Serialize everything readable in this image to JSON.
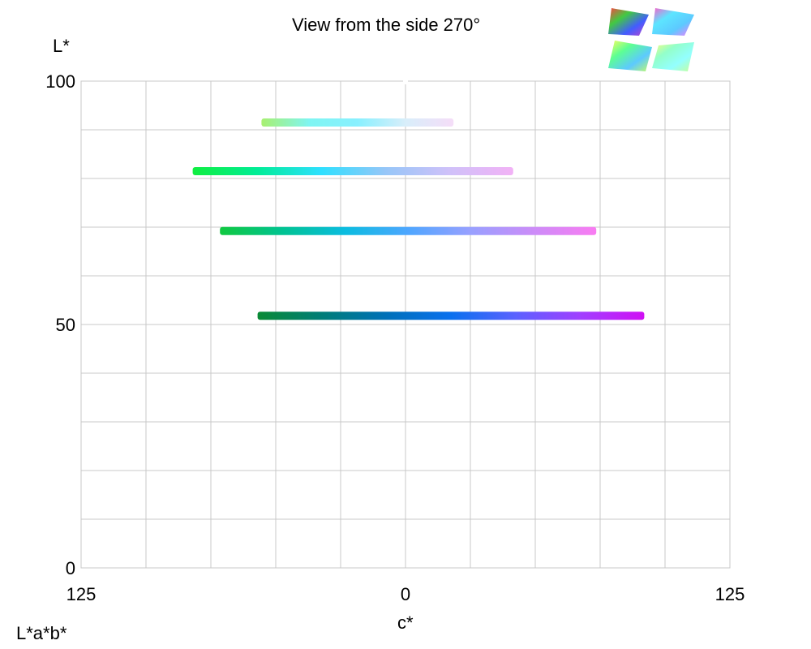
{
  "title": "View from the side 270°",
  "space_label": "L*a*b*",
  "chart_data": {
    "type": "line",
    "title": "View from the side 270°",
    "xlabel": "c*",
    "ylabel": "L*",
    "xlim": [
      -125,
      125
    ],
    "ylim": [
      0,
      100
    ],
    "x_tick_labels": [
      "125",
      "0",
      "125"
    ],
    "x_tick_values": [
      -125,
      0,
      125
    ],
    "y_tick_labels": [
      "0",
      "50",
      "100"
    ],
    "y_tick_values": [
      0,
      50,
      100
    ],
    "grid": true,
    "series": [
      {
        "L": 91.5,
        "c_from": -55.5,
        "c_to": 18.5,
        "colors": [
          "#a8f070",
          "#7ff5f2",
          "#88f0ff",
          "#d8eefa",
          "#f5ddf8"
        ]
      },
      {
        "L": 81.5,
        "c_from": -82,
        "c_to": 41.5,
        "colors": [
          "#10ee40",
          "#00ed96",
          "#2ee0ff",
          "#96c6f8",
          "#cfc1f9",
          "#f2b2f6"
        ]
      },
      {
        "L": 69.2,
        "c_from": -71.5,
        "c_to": 73.5,
        "colors": [
          "#10c840",
          "#00c392",
          "#0bbce0",
          "#4ea6ff",
          "#98a0ff",
          "#cc8cf8",
          "#f97cf2"
        ]
      },
      {
        "L": 51.8,
        "c_from": -57,
        "c_to": 92,
        "colors": [
          "#0a8a35",
          "#007d78",
          "#0070b8",
          "#0a70ee",
          "#5b62ff",
          "#a040ff",
          "#d010f4"
        ]
      }
    ]
  },
  "thumbnails": [
    {
      "name": "thumb-top-left",
      "colors": [
        "#ff2020",
        "#20c020",
        "#2040ff",
        "#c020c0"
      ]
    },
    {
      "name": "thumb-top-right",
      "colors": [
        "#ff40c0",
        "#40e0ff",
        "#40c0ff",
        "#ff60ff"
      ]
    },
    {
      "name": "thumb-bottom-left",
      "colors": [
        "#ffff40",
        "#40ff80",
        "#40c0ff",
        "#c0ff40"
      ]
    },
    {
      "name": "thumb-bottom-right",
      "colors": [
        "#ffff60",
        "#80ffc0",
        "#80ffff",
        "#c0ff80"
      ]
    }
  ]
}
